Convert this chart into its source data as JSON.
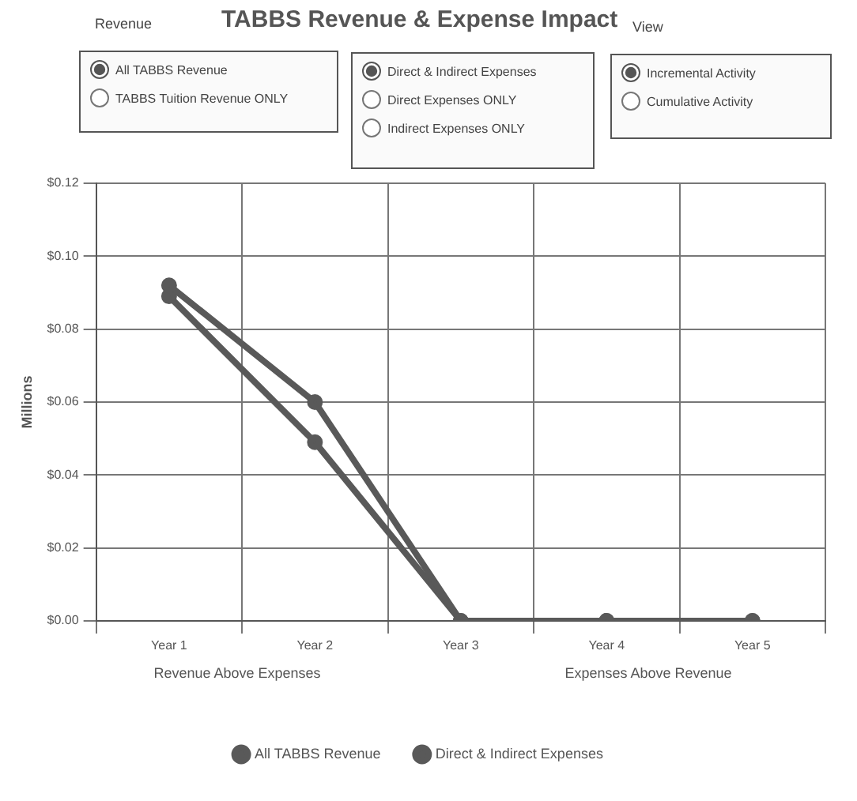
{
  "chart_data": {
    "type": "line",
    "title": "TABBS Revenue & Expense Impact",
    "ylabel": "Millions",
    "categories": [
      "Year 1",
      "Year 2",
      "Year 3",
      "Year 4",
      "Year 5"
    ],
    "series": [
      {
        "name": "All TABBS Revenue",
        "color": "#595959",
        "values": [
          0.092,
          0.06,
          0,
          0,
          0
        ]
      },
      {
        "name": "Direct & Indirect Expenses",
        "color": "#595959",
        "values": [
          0.089,
          0.049,
          0,
          0,
          0
        ]
      }
    ],
    "ylim": [
      0,
      0.12
    ],
    "yticks": [
      {
        "value": 0,
        "label": "$0.00"
      },
      {
        "value": 0.02,
        "label": "$0.02"
      },
      {
        "value": 0.04,
        "label": "$0.04"
      },
      {
        "value": 0.06,
        "label": "$0.06"
      },
      {
        "value": 0.08,
        "label": "$0.08"
      },
      {
        "value": 0.1,
        "label": "$0.10"
      },
      {
        "value": 0.12,
        "label": "$0.12"
      }
    ],
    "grid": true,
    "legend": "bottom",
    "marker": "circle",
    "line_style": "solid",
    "annotations": [
      "Revenue",
      "All TABBS Revenue",
      "TABBS Tuition Revenue ONLY",
      "Direct & Indirect Expenses",
      "Direct Expenses ONLY",
      "Indirect Expenses ONLY",
      "View",
      "Incremental Activity",
      "Cumulative Activity",
      "Revenue Above Expenses",
      "Expenses Above Revenue"
    ]
  }
}
